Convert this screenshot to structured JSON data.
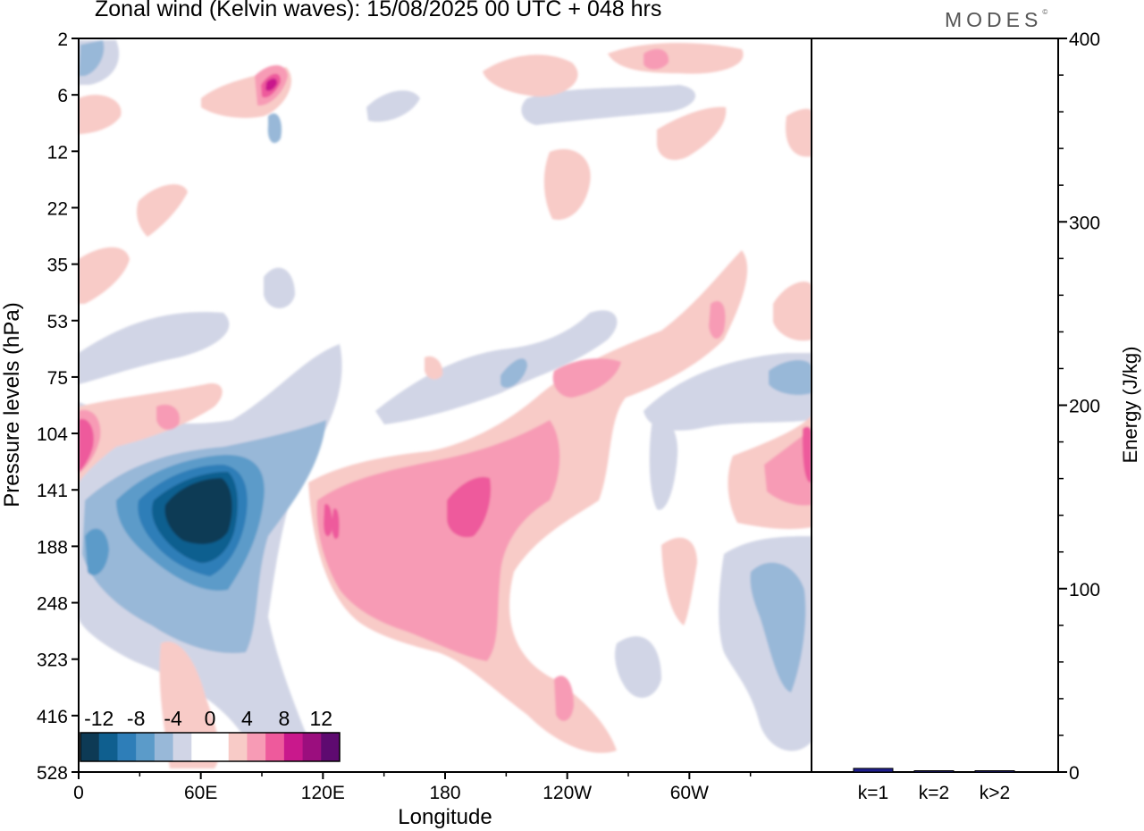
{
  "header": {
    "title": "Zonal wind (Kelvin waves):  15/08/2025  00 UTC  + 048 hrs",
    "brand": "MODES",
    "brand_mark": "©"
  },
  "chart_data": [
    {
      "type": "heatmap",
      "xlabel": "Longitude",
      "ylabel": "Pressure levels (hPa)",
      "x_ticks": [
        "0",
        "60E",
        "120E",
        "180",
        "120W",
        "60W"
      ],
      "y_ticks": [
        "2",
        "6",
        "12",
        "22",
        "35",
        "53",
        "75",
        "104",
        "141",
        "188",
        "248",
        "323",
        "416",
        "528"
      ],
      "y_reversed": true,
      "colorbar": {
        "labels": [
          "-12",
          "-8",
          "-4",
          "0",
          "4",
          "8",
          "12"
        ],
        "colors": [
          "#0d3a55",
          "#0f5f8f",
          "#2e7eb8",
          "#5b9bc9",
          "#98b8d8",
          "#d1d5e6",
          "#ffffff",
          "#ffffff",
          "#f8cbc7",
          "#f79bb5",
          "#ee5a9c",
          "#c9188c",
          "#9b0e7e",
          "#5e0a70"
        ]
      },
      "features": [
        {
          "sign": "negative",
          "lon_range": [
            "40E",
            "75E"
          ],
          "level_range": [
            104,
            248
          ],
          "peak": -14
        },
        {
          "sign": "negative",
          "lon_range": [
            "0",
            "130E"
          ],
          "level_range": [
            53,
            416
          ],
          "peak": -4
        },
        {
          "sign": "positive",
          "lon_range": [
            "120E",
            "200E"
          ],
          "level_range": [
            104,
            416
          ],
          "peak": 8
        },
        {
          "sign": "positive",
          "lon_range": [
            "0",
            "10E"
          ],
          "level_range": [
            75,
            188
          ],
          "peak": 8
        },
        {
          "sign": "positive",
          "lon_range": [
            "90E",
            "110E"
          ],
          "level_range": [
            2,
            12
          ],
          "peak": 10
        },
        {
          "sign": "negative",
          "lon_range": [
            "0",
            "20E"
          ],
          "level_range": [
            2,
            12
          ],
          "peak": -4
        }
      ],
      "grid": false
    },
    {
      "type": "bar",
      "categories": [
        "k=1",
        "k=2",
        "k>2"
      ],
      "values": [
        2,
        0.6,
        0.6
      ],
      "ylabel": "Energy (J/kg)",
      "y_ticks": [
        "0",
        "100",
        "200",
        "300",
        "400"
      ],
      "ylim": [
        0,
        400
      ],
      "bar_color": "#1f1f8f",
      "axis_side": "right"
    }
  ]
}
